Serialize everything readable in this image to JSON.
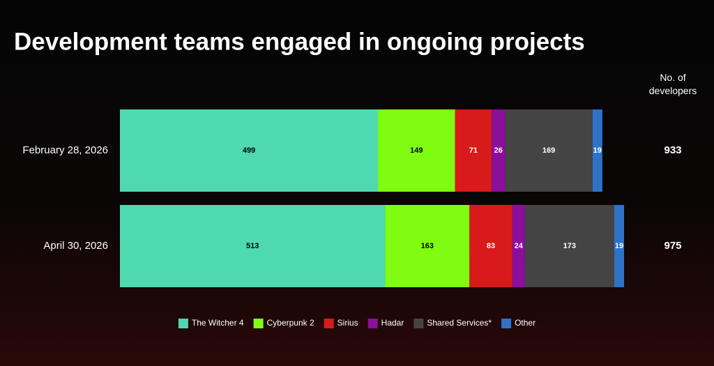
{
  "chart_data": {
    "type": "stacked-bar-horizontal",
    "title": "Development teams engaged in ongoing projects",
    "categories": [
      "February 28, 2026",
      "April 30, 2026"
    ],
    "series": [
      {
        "name": "The Witcher 4",
        "color": "#4fd9b0",
        "values": [
          499,
          513
        ]
      },
      {
        "name": "Cyberpunk 2",
        "color": "#80fc12",
        "values": [
          149,
          163
        ]
      },
      {
        "name": "Sirius",
        "color": "#d91a1a",
        "values": [
          71,
          83
        ]
      },
      {
        "name": "Hadar",
        "color": "#8b0f9c",
        "values": [
          26,
          24
        ]
      },
      {
        "name": "Shared Services*",
        "color": "#444444",
        "values": [
          169,
          173
        ]
      },
      {
        "name": "Other",
        "color": "#2f72c8",
        "values": [
          19,
          19
        ]
      }
    ],
    "totals_label": "No. of developers",
    "totals": [
      933,
      975
    ],
    "legend": "bottom"
  }
}
